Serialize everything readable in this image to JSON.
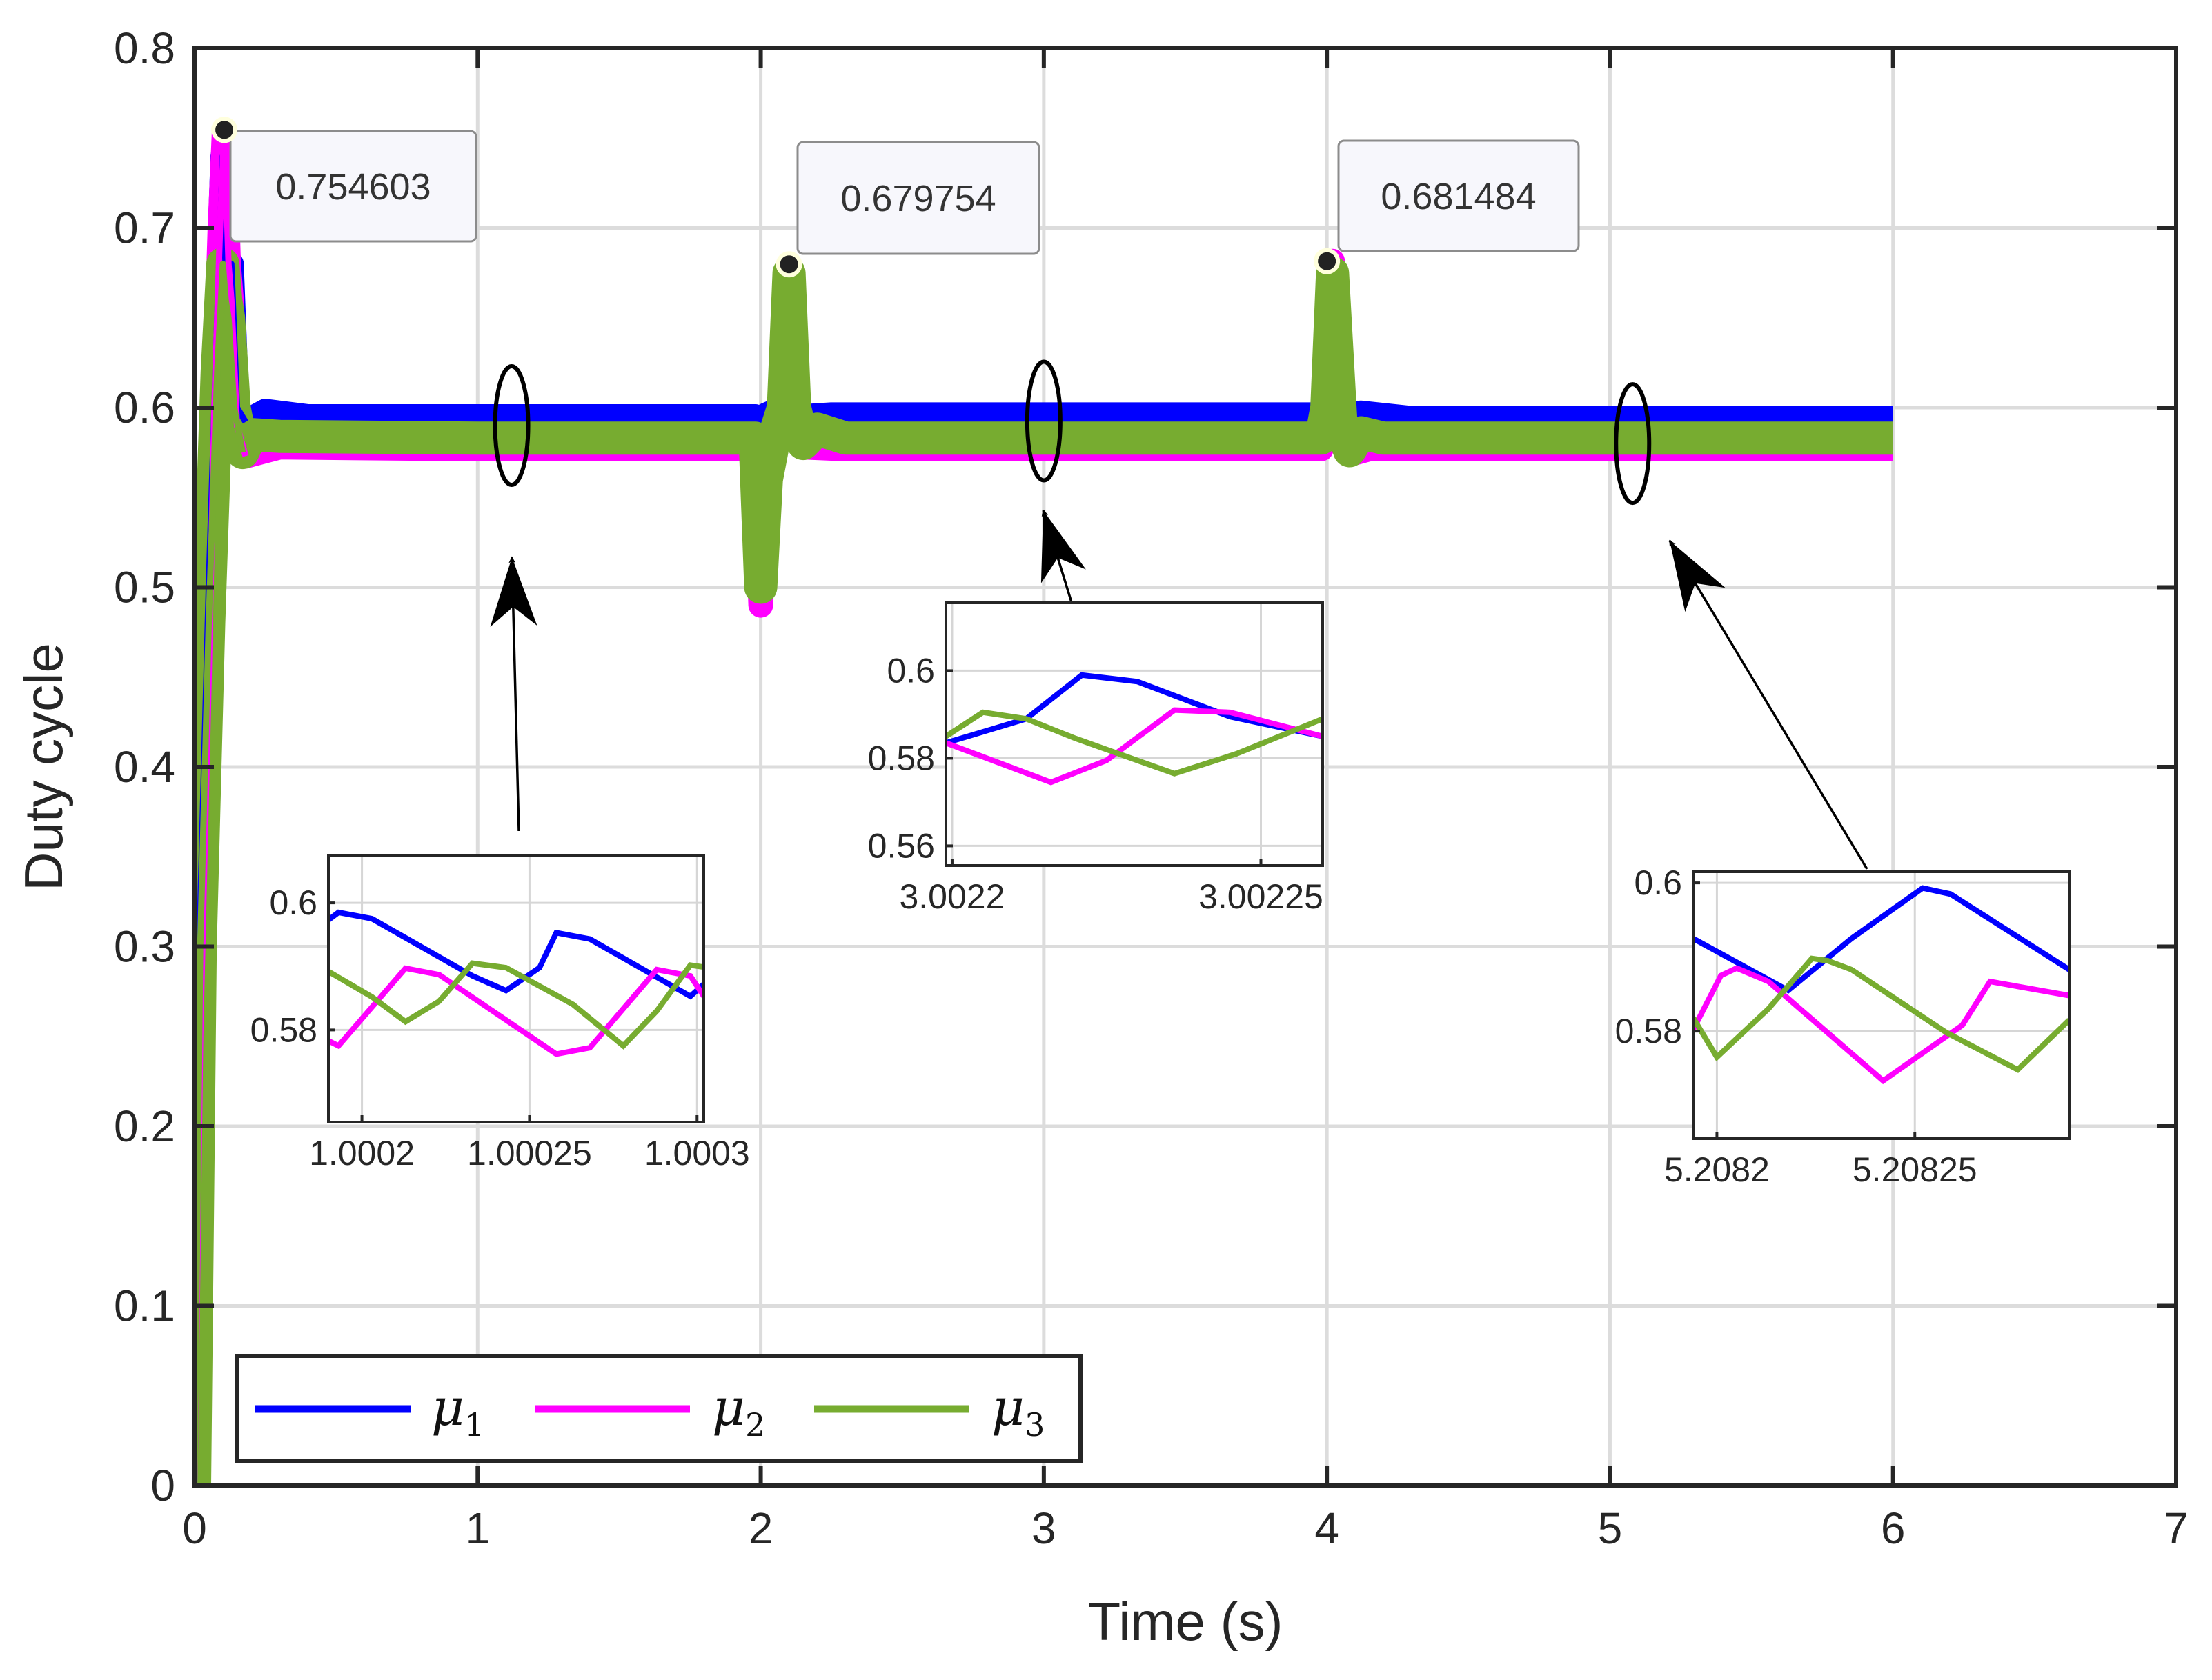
{
  "chart_data": {
    "type": "line",
    "xlabel": "Time (s)",
    "ylabel": "Duty cycle",
    "xlim": [
      0,
      7
    ],
    "ylim": [
      0,
      0.8
    ],
    "xticks": [
      0,
      1,
      2,
      3,
      4,
      5,
      6,
      7
    ],
    "xtick_labels": [
      "0",
      "1",
      "2",
      "3",
      "4",
      "5",
      "6",
      "7"
    ],
    "yticks": [
      0,
      0.1,
      0.2,
      0.3,
      0.4,
      0.5,
      0.6,
      0.7,
      0.8
    ],
    "ytick_labels": [
      "0",
      "0.1",
      "0.2",
      "0.3",
      "0.4",
      "0.5",
      "0.6",
      "0.7",
      "0.8"
    ],
    "grid": true,
    "legend_position": "bottom-left",
    "series": [
      {
        "name": "μ1",
        "symbol": "μ",
        "sub": "1",
        "color": "#0000ff",
        "x": [
          0,
          0.02,
          0.05,
          0.08,
          0.1,
          0.11,
          0.12,
          0.13,
          0.15,
          0.18,
          0.25,
          0.4,
          1.5,
          1.98,
          2.0,
          2.02,
          2.08,
          2.1,
          2.12,
          2.15,
          2.25,
          3.5,
          3.98,
          4.0,
          4.02,
          4.05,
          4.08,
          4.12,
          4.3,
          6.0
        ],
        "y": [
          0,
          0.32,
          0.5,
          0.65,
          0.74,
          0.68,
          0.67,
          0.68,
          0.6,
          0.592,
          0.598,
          0.595,
          0.595,
          0.595,
          0.588,
          0.596,
          0.6,
          0.67,
          0.6,
          0.595,
          0.596,
          0.596,
          0.596,
          0.6,
          0.672,
          0.6,
          0.59,
          0.597,
          0.594,
          0.594
        ]
      },
      {
        "name": "μ2",
        "symbol": "μ",
        "sub": "2",
        "color": "#ff00ff",
        "x": [
          0,
          0.02,
          0.05,
          0.07,
          0.09,
          0.105,
          0.12,
          0.13,
          0.15,
          0.18,
          0.3,
          1.0,
          1.98,
          2.0,
          2.02,
          2.05,
          2.08,
          2.1,
          2.12,
          2.15,
          2.3,
          3.98,
          4.0,
          4.02,
          4.05,
          4.08,
          4.15,
          6.0
        ],
        "y": [
          0,
          0.25,
          0.45,
          0.6,
          0.7,
          0.7546,
          0.68,
          0.66,
          0.59,
          0.573,
          0.578,
          0.577,
          0.577,
          0.49,
          0.56,
          0.578,
          0.61,
          0.6798,
          0.6,
          0.578,
          0.577,
          0.577,
          0.6,
          0.6815,
          0.59,
          0.574,
          0.577,
          0.577
        ]
      },
      {
        "name": "μ3",
        "symbol": "μ",
        "sub": "3",
        "color": "#77ac30",
        "x": [
          0,
          0.02,
          0.05,
          0.08,
          0.1,
          0.11,
          0.12,
          0.14,
          0.17,
          0.2,
          0.3,
          1.0,
          1.98,
          2.0,
          2.02,
          2.05,
          2.08,
          2.1,
          2.12,
          2.15,
          2.2,
          2.3,
          3.98,
          4.0,
          4.02,
          4.05,
          4.08,
          4.12,
          4.2,
          6.0
        ],
        "y": [
          0,
          0.3,
          0.48,
          0.62,
          0.68,
          0.66,
          0.65,
          0.6,
          0.575,
          0.585,
          0.584,
          0.583,
          0.583,
          0.5,
          0.56,
          0.585,
          0.6,
          0.675,
          0.6,
          0.58,
          0.588,
          0.583,
          0.583,
          0.6,
          0.675,
          0.59,
          0.576,
          0.586,
          0.583,
          0.583
        ]
      }
    ],
    "datatips": [
      {
        "x": 0.105,
        "y": 0.754603,
        "label": "0.754603"
      },
      {
        "x": 2.1,
        "y": 0.679754,
        "label": "0.679754"
      },
      {
        "x": 4.0,
        "y": 0.681484,
        "label": "0.681484"
      }
    ],
    "zoom_markers": [
      {
        "x": 1.12,
        "y": 0.59
      },
      {
        "x": 3.0,
        "y": 0.5925
      },
      {
        "x": 5.08,
        "y": 0.58
      }
    ],
    "insets": [
      {
        "id": "inset1",
        "xlim": [
          1.00019,
          1.000302
        ],
        "ylim": [
          0.5655,
          0.6075
        ],
        "xticks": [
          1.0002,
          1.00025,
          1.0003
        ],
        "xtick_labels": [
          "1.0002",
          "1.00025",
          "1.0003"
        ],
        "yticks": [
          0.58,
          0.6
        ],
        "ytick_labels": [
          "0.58",
          "0.6"
        ],
        "series": [
          {
            "color": "#0000ff",
            "x": [
              1.00019,
              1.000193,
              1.000203,
              1.000233,
              1.000243,
              1.000253,
              1.000258,
              1.000268,
              1.000298,
              1.000302
            ],
            "y": [
              0.5973,
              0.5985,
              0.5975,
              0.5885,
              0.5862,
              0.5898,
              0.5953,
              0.5943,
              0.5853,
              0.5872
            ]
          },
          {
            "color": "#ff00ff",
            "x": [
              1.00019,
              1.000193,
              1.000213,
              1.000223,
              1.000258,
              1.000268,
              1.000288,
              1.000298,
              1.000302
            ],
            "y": [
              0.5783,
              0.5775,
              0.5897,
              0.5887,
              0.5762,
              0.5772,
              0.5895,
              0.5885,
              0.5853
            ]
          },
          {
            "color": "#77ac30",
            "x": [
              1.00019,
              1.000203,
              1.000213,
              1.000223,
              1.000233,
              1.000243,
              1.000263,
              1.000278,
              1.000288,
              1.000298,
              1.000302
            ],
            "y": [
              0.5892,
              0.5852,
              0.5813,
              0.5845,
              0.5905,
              0.5898,
              0.584,
              0.5775,
              0.583,
              0.5902,
              0.5899
            ]
          }
        ]
      },
      {
        "id": "inset2",
        "xlim": [
          3.002199,
          3.00226
        ],
        "ylim": [
          0.5555,
          0.6155
        ],
        "xticks": [
          3.0022,
          3.00225
        ],
        "xtick_labels": [
          "3.0022",
          "3.00225"
        ],
        "yticks": [
          0.56,
          0.58,
          0.6
        ],
        "ytick_labels": [
          "0.56",
          "0.58",
          "0.6"
        ],
        "series": [
          {
            "color": "#0000ff",
            "x": [
              3.002199,
              3.002212,
              3.002221,
              3.00223,
              3.002245,
              3.00226
            ],
            "y": [
              0.5835,
              0.589,
              0.599,
              0.5975,
              0.5895,
              0.585
            ]
          },
          {
            "color": "#ff00ff",
            "x": [
              3.002199,
              3.002216,
              3.002225,
              3.002236,
              3.002245,
              3.00226
            ],
            "y": [
              0.5835,
              0.5745,
              0.5795,
              0.591,
              0.5905,
              0.585
            ]
          },
          {
            "color": "#77ac30",
            "x": [
              3.002199,
              3.002205,
              3.002212,
              3.00222,
              3.002236,
              3.002246,
              3.00226
            ],
            "y": [
              0.585,
              0.5905,
              0.589,
              0.5845,
              0.5765,
              0.581,
              0.589
            ]
          }
        ]
      },
      {
        "id": "inset3",
        "xlim": [
          5.208194,
          5.208289
        ],
        "ylim": [
          0.5655,
          0.6015
        ],
        "xticks": [
          5.2082,
          5.20825
        ],
        "xtick_labels": [
          "5.2082",
          "5.20825"
        ],
        "yticks": [
          0.58,
          0.6
        ],
        "ytick_labels": [
          "0.58",
          "0.6"
        ],
        "series": [
          {
            "color": "#0000ff",
            "x": [
              5.208194,
              5.208218,
              5.208234,
              5.208252,
              5.208259,
              5.208289
            ],
            "y": [
              0.5925,
              0.5855,
              0.5925,
              0.5993,
              0.5985,
              0.5883
            ]
          },
          {
            "color": "#ff00ff",
            "x": [
              5.208194,
              5.208201,
              5.208205,
              5.208213,
              5.208242,
              5.208262,
              5.208269,
              5.208289
            ],
            "y": [
              0.5802,
              0.5875,
              0.5885,
              0.5867,
              0.5733,
              0.5808,
              0.5867,
              0.5848
            ]
          },
          {
            "color": "#77ac30",
            "x": [
              5.208194,
              5.2082,
              5.208213,
              5.208224,
              5.208228,
              5.208234,
              5.208258,
              5.208276,
              5.208289
            ],
            "y": [
              0.5818,
              0.5765,
              0.583,
              0.5898,
              0.5895,
              0.5883,
              0.5798,
              0.5748,
              0.5815
            ]
          }
        ]
      }
    ]
  }
}
